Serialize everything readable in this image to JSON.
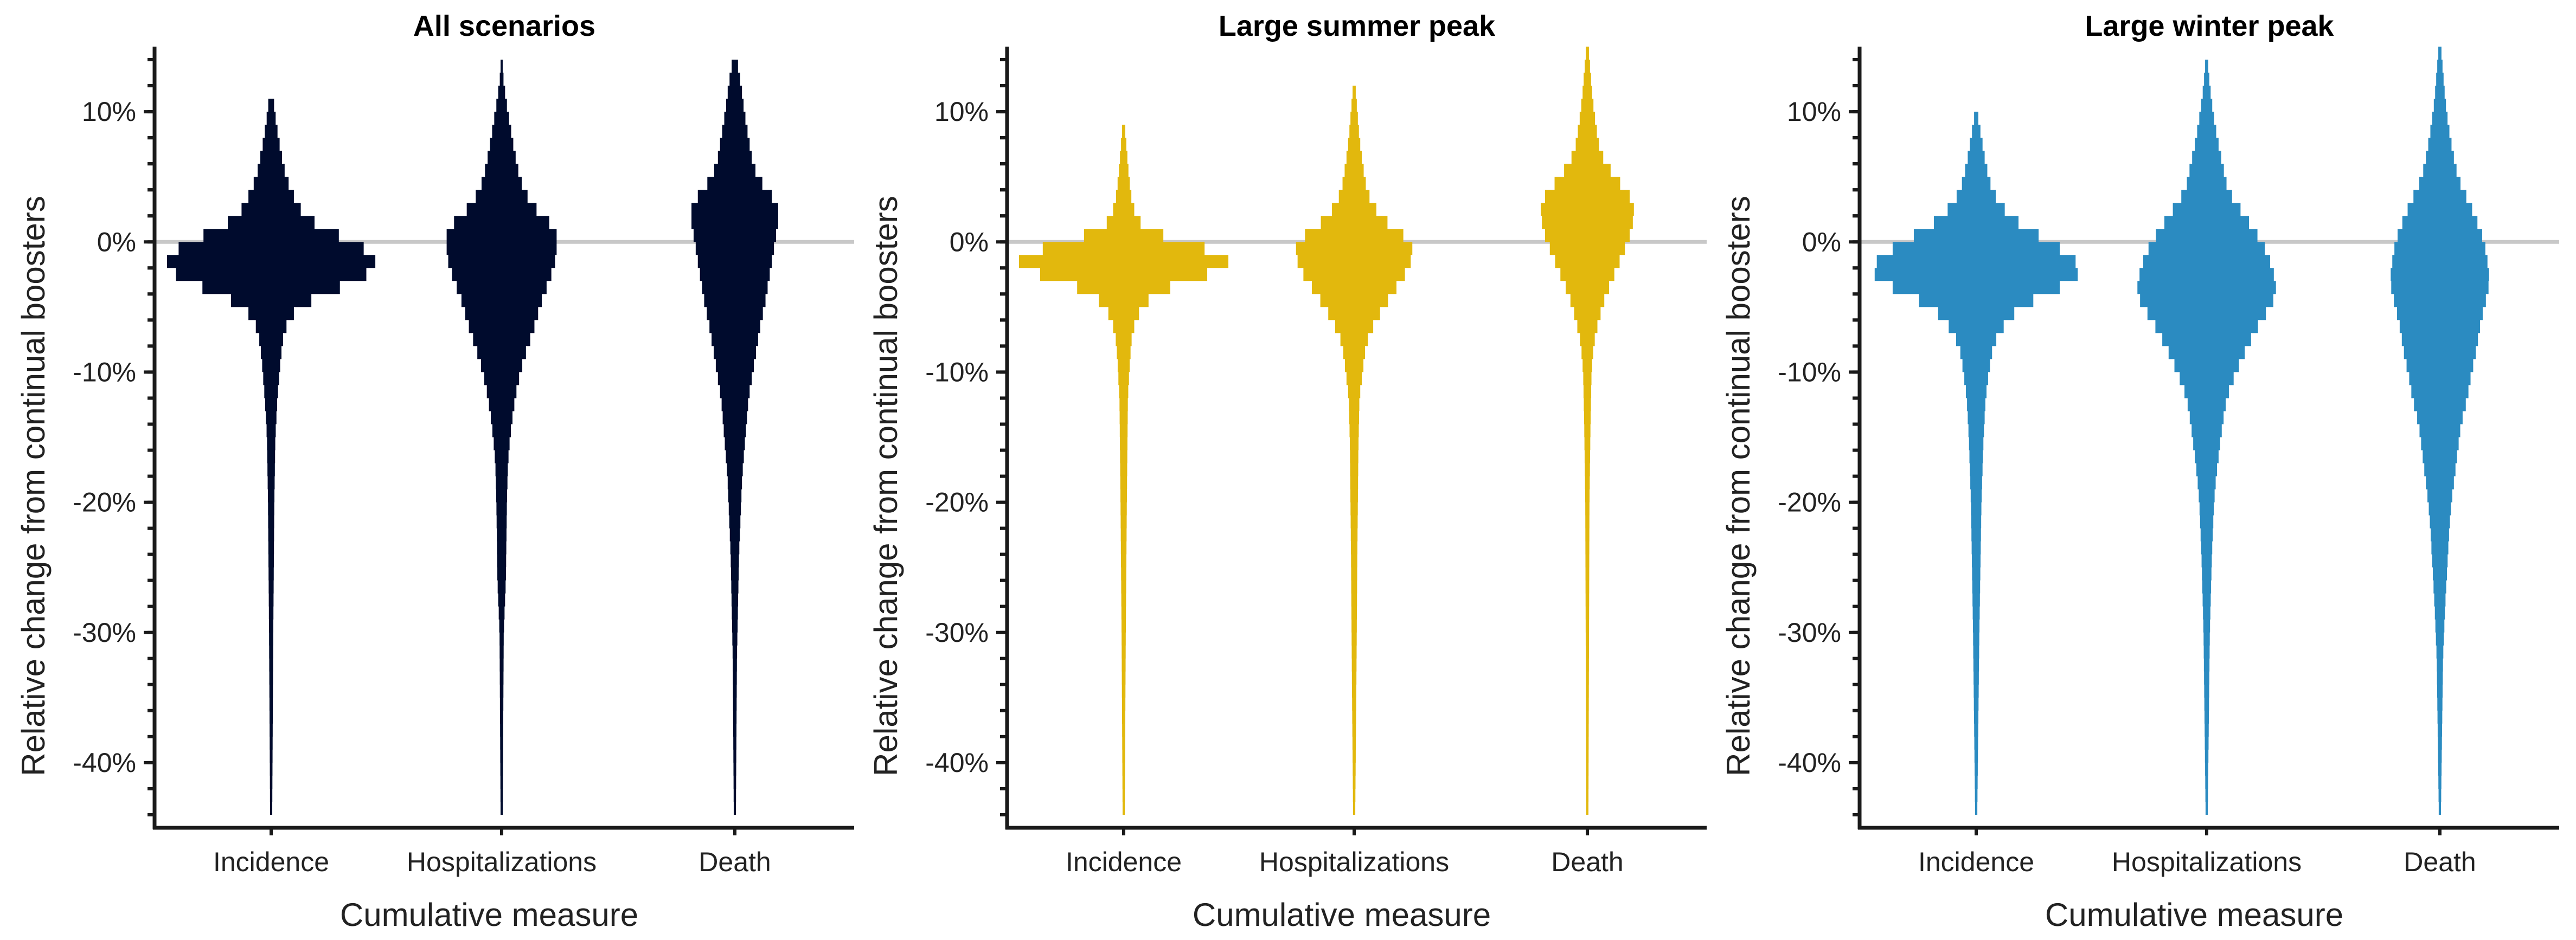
{
  "chart_data": [
    {
      "type": "violin",
      "title": "All scenarios",
      "xlabel": "Cumulative measure",
      "ylabel": "Relative change from continual boosters",
      "categories": [
        "Incidence",
        "Hospitalizations",
        "Death"
      ],
      "color": "#000b2d",
      "ylim": [
        -45,
        15
      ],
      "yticks": [
        -40,
        -30,
        -20,
        -10,
        0,
        10
      ],
      "ytick_labels": [
        "-40%",
        "-30%",
        "-20%",
        "-10%",
        "0%",
        "10%"
      ],
      "reference_line": 0,
      "grid": false,
      "bin_width": 1,
      "distributions": [
        {
          "category": "Incidence",
          "y_range": [
            -44,
            11
          ],
          "width_profile": [
            [
              11,
              0.02
            ],
            [
              9,
              0.05
            ],
            [
              7,
              0.09
            ],
            [
              5,
              0.14
            ],
            [
              4,
              0.19
            ],
            [
              3,
              0.24
            ],
            [
              2,
              0.32
            ],
            [
              1,
              0.5
            ],
            [
              0,
              0.78
            ],
            [
              -1,
              0.97
            ],
            [
              -2,
              1.0
            ],
            [
              -3,
              0.8
            ],
            [
              -4,
              0.5
            ],
            [
              -5,
              0.26
            ],
            [
              -6,
              0.17
            ],
            [
              -7,
              0.12
            ],
            [
              -9,
              0.09
            ],
            [
              -12,
              0.06
            ],
            [
              -15,
              0.04
            ],
            [
              -20,
              0.03
            ],
            [
              -30,
              0.02
            ],
            [
              -44,
              0.01
            ]
          ]
        },
        {
          "category": "Hospitalizations",
          "y_range": [
            -44,
            14
          ],
          "width_profile": [
            [
              13,
              0.01
            ],
            [
              11,
              0.04
            ],
            [
              9,
              0.08
            ],
            [
              7,
              0.12
            ],
            [
              5,
              0.17
            ],
            [
              4,
              0.21
            ],
            [
              3,
              0.28
            ],
            [
              2,
              0.38
            ],
            [
              1,
              0.52
            ],
            [
              0,
              0.52
            ],
            [
              -1,
              0.52
            ],
            [
              -2,
              0.49
            ],
            [
              -3,
              0.45
            ],
            [
              -4,
              0.4
            ],
            [
              -5,
              0.36
            ],
            [
              -6,
              0.33
            ],
            [
              -7,
              0.29
            ],
            [
              -8,
              0.25
            ],
            [
              -9,
              0.21
            ],
            [
              -10,
              0.18
            ],
            [
              -11,
              0.15
            ],
            [
              -12,
              0.13
            ],
            [
              -13,
              0.11
            ],
            [
              -15,
              0.08
            ],
            [
              -17,
              0.06
            ],
            [
              -20,
              0.05
            ],
            [
              -26,
              0.04
            ],
            [
              -30,
              0.02
            ],
            [
              -44,
              0.01
            ]
          ]
        },
        {
          "category": "Death",
          "y_range": [
            -44,
            14
          ],
          "width_profile": [
            [
              14,
              0.02
            ],
            [
              12,
              0.06
            ],
            [
              10,
              0.09
            ],
            [
              8,
              0.13
            ],
            [
              6,
              0.17
            ],
            [
              5,
              0.22
            ],
            [
              4,
              0.3
            ],
            [
              3,
              0.4
            ],
            [
              2,
              0.42
            ],
            [
              1,
              0.4
            ],
            [
              0,
              0.38
            ],
            [
              -1,
              0.36
            ],
            [
              -2,
              0.34
            ],
            [
              -3,
              0.32
            ],
            [
              -4,
              0.3
            ],
            [
              -5,
              0.28
            ],
            [
              -6,
              0.25
            ],
            [
              -7,
              0.23
            ],
            [
              -8,
              0.21
            ],
            [
              -9,
              0.19
            ],
            [
              -10,
              0.17
            ],
            [
              -11,
              0.15
            ],
            [
              -12,
              0.13
            ],
            [
              -14,
              0.11
            ],
            [
              -16,
              0.09
            ],
            [
              -18,
              0.07
            ],
            [
              -20,
              0.06
            ],
            [
              -24,
              0.04
            ],
            [
              -28,
              0.03
            ],
            [
              -32,
              0.02
            ],
            [
              -44,
              0.01
            ]
          ]
        }
      ]
    },
    {
      "type": "violin",
      "title": "Large summer peak",
      "xlabel": "Cumulative measure",
      "ylabel": "Relative change from continual boosters",
      "categories": [
        "Incidence",
        "Hospitalizations",
        "Death"
      ],
      "color": "#e2b80d",
      "ylim": [
        -45,
        15
      ],
      "yticks": [
        -40,
        -30,
        -20,
        -10,
        0,
        10
      ],
      "ytick_labels": [
        "-40%",
        "-30%",
        "-20%",
        "-10%",
        "0%",
        "10%"
      ],
      "reference_line": 0,
      "grid": false,
      "bin_width": 1,
      "distributions": [
        {
          "category": "Incidence",
          "y_range": [
            -44,
            9
          ],
          "width_profile": [
            [
              9,
              0.01
            ],
            [
              7,
              0.03
            ],
            [
              5,
              0.05
            ],
            [
              3,
              0.08
            ],
            [
              2,
              0.12
            ],
            [
              1,
              0.2
            ],
            [
              0,
              0.55
            ],
            [
              -1,
              0.98
            ],
            [
              -2,
              1.0
            ],
            [
              -3,
              0.58
            ],
            [
              -4,
              0.3
            ],
            [
              -5,
              0.17
            ],
            [
              -6,
              0.12
            ],
            [
              -7,
              0.08
            ],
            [
              -9,
              0.06
            ],
            [
              -12,
              0.04
            ],
            [
              -20,
              0.03
            ],
            [
              -30,
              0.02
            ],
            [
              -44,
              0.01
            ]
          ]
        },
        {
          "category": "Hospitalizations",
          "y_range": [
            -44,
            12
          ],
          "width_profile": [
            [
              12,
              0.01
            ],
            [
              10,
              0.03
            ],
            [
              8,
              0.05
            ],
            [
              6,
              0.08
            ],
            [
              4,
              0.12
            ],
            [
              3,
              0.17
            ],
            [
              2,
              0.25
            ],
            [
              1,
              0.38
            ],
            [
              0,
              0.55
            ],
            [
              -1,
              0.55
            ],
            [
              -2,
              0.52
            ],
            [
              -3,
              0.44
            ],
            [
              -4,
              0.36
            ],
            [
              -5,
              0.28
            ],
            [
              -6,
              0.21
            ],
            [
              -7,
              0.15
            ],
            [
              -8,
              0.11
            ],
            [
              -10,
              0.08
            ],
            [
              -12,
              0.05
            ],
            [
              -16,
              0.04
            ],
            [
              -24,
              0.03
            ],
            [
              -35,
              0.02
            ],
            [
              -44,
              0.01
            ]
          ]
        },
        {
          "category": "Death",
          "y_range": [
            -44,
            15
          ],
          "width_profile": [
            [
              15,
              0.01
            ],
            [
              13,
              0.03
            ],
            [
              11,
              0.05
            ],
            [
              9,
              0.08
            ],
            [
              7,
              0.12
            ],
            [
              6,
              0.18
            ],
            [
              5,
              0.26
            ],
            [
              4,
              0.36
            ],
            [
              3,
              0.44
            ],
            [
              2,
              0.44
            ],
            [
              1,
              0.42
            ],
            [
              0,
              0.38
            ],
            [
              -1,
              0.33
            ],
            [
              -2,
              0.28
            ],
            [
              -3,
              0.23
            ],
            [
              -4,
              0.18
            ],
            [
              -5,
              0.14
            ],
            [
              -6,
              0.11
            ],
            [
              -7,
              0.08
            ],
            [
              -8,
              0.06
            ],
            [
              -10,
              0.04
            ],
            [
              -14,
              0.03
            ],
            [
              -20,
              0.02
            ],
            [
              -44,
              0.01
            ]
          ]
        }
      ]
    },
    {
      "type": "violin",
      "title": "Large winter peak",
      "xlabel": "Cumulative measure",
      "ylabel": "Relative change from continual boosters",
      "categories": [
        "Incidence",
        "Hospitalizations",
        "Death"
      ],
      "color": "#2b8bc1",
      "ylim": [
        -45,
        15
      ],
      "yticks": [
        -40,
        -30,
        -20,
        -10,
        0,
        10
      ],
      "ytick_labels": [
        "-40%",
        "-30%",
        "-20%",
        "-10%",
        "0%",
        "10%"
      ],
      "reference_line": 0,
      "grid": false,
      "bin_width": 1,
      "distributions": [
        {
          "category": "Incidence",
          "y_range": [
            -44,
            10
          ],
          "width_profile": [
            [
              10,
              0.01
            ],
            [
              8,
              0.05
            ],
            [
              6,
              0.09
            ],
            [
              4,
              0.15
            ],
            [
              3,
              0.22
            ],
            [
              2,
              0.32
            ],
            [
              1,
              0.48
            ],
            [
              0,
              0.7
            ],
            [
              -1,
              0.88
            ],
            [
              -2,
              1.0
            ],
            [
              -3,
              0.92
            ],
            [
              -4,
              0.66
            ],
            [
              -5,
              0.42
            ],
            [
              -6,
              0.3
            ],
            [
              -7,
              0.22
            ],
            [
              -8,
              0.16
            ],
            [
              -10,
              0.12
            ],
            [
              -12,
              0.09
            ],
            [
              -15,
              0.07
            ],
            [
              -20,
              0.05
            ],
            [
              -30,
              0.03
            ],
            [
              -44,
              0.01
            ]
          ]
        },
        {
          "category": "Hospitalizations",
          "y_range": [
            -44,
            14
          ],
          "width_profile": [
            [
              14,
              0.01
            ],
            [
              12,
              0.03
            ],
            [
              10,
              0.06
            ],
            [
              8,
              0.1
            ],
            [
              6,
              0.15
            ],
            [
              4,
              0.2
            ],
            [
              3,
              0.28
            ],
            [
              2,
              0.36
            ],
            [
              1,
              0.44
            ],
            [
              0,
              0.52
            ],
            [
              -1,
              0.58
            ],
            [
              -2,
              0.62
            ],
            [
              -3,
              0.65
            ],
            [
              -4,
              0.66
            ],
            [
              -5,
              0.6
            ],
            [
              -6,
              0.52
            ],
            [
              -7,
              0.45
            ],
            [
              -8,
              0.39
            ],
            [
              -9,
              0.33
            ],
            [
              -10,
              0.28
            ],
            [
              -11,
              0.23
            ],
            [
              -12,
              0.19
            ],
            [
              -14,
              0.15
            ],
            [
              -16,
              0.12
            ],
            [
              -18,
              0.09
            ],
            [
              -20,
              0.07
            ],
            [
              -24,
              0.05
            ],
            [
              -30,
              0.03
            ],
            [
              -44,
              0.01
            ]
          ]
        },
        {
          "category": "Death",
          "y_range": [
            -44,
            15
          ],
          "width_profile": [
            [
              15,
              0.01
            ],
            [
              13,
              0.03
            ],
            [
              11,
              0.05
            ],
            [
              9,
              0.08
            ],
            [
              7,
              0.12
            ],
            [
              5,
              0.17
            ],
            [
              4,
              0.22
            ],
            [
              3,
              0.28
            ],
            [
              2,
              0.33
            ],
            [
              1,
              0.38
            ],
            [
              0,
              0.42
            ],
            [
              -1,
              0.44
            ],
            [
              -2,
              0.46
            ],
            [
              -3,
              0.47
            ],
            [
              -4,
              0.45
            ],
            [
              -5,
              0.42
            ],
            [
              -6,
              0.39
            ],
            [
              -7,
              0.37
            ],
            [
              -8,
              0.35
            ],
            [
              -9,
              0.33
            ],
            [
              -10,
              0.3
            ],
            [
              -11,
              0.28
            ],
            [
              -12,
              0.26
            ],
            [
              -13,
              0.23
            ],
            [
              -14,
              0.2
            ],
            [
              -16,
              0.17
            ],
            [
              -18,
              0.14
            ],
            [
              -20,
              0.11
            ],
            [
              -22,
              0.09
            ],
            [
              -25,
              0.07
            ],
            [
              -28,
              0.05
            ],
            [
              -32,
              0.03
            ],
            [
              -44,
              0.01
            ]
          ]
        }
      ]
    }
  ]
}
